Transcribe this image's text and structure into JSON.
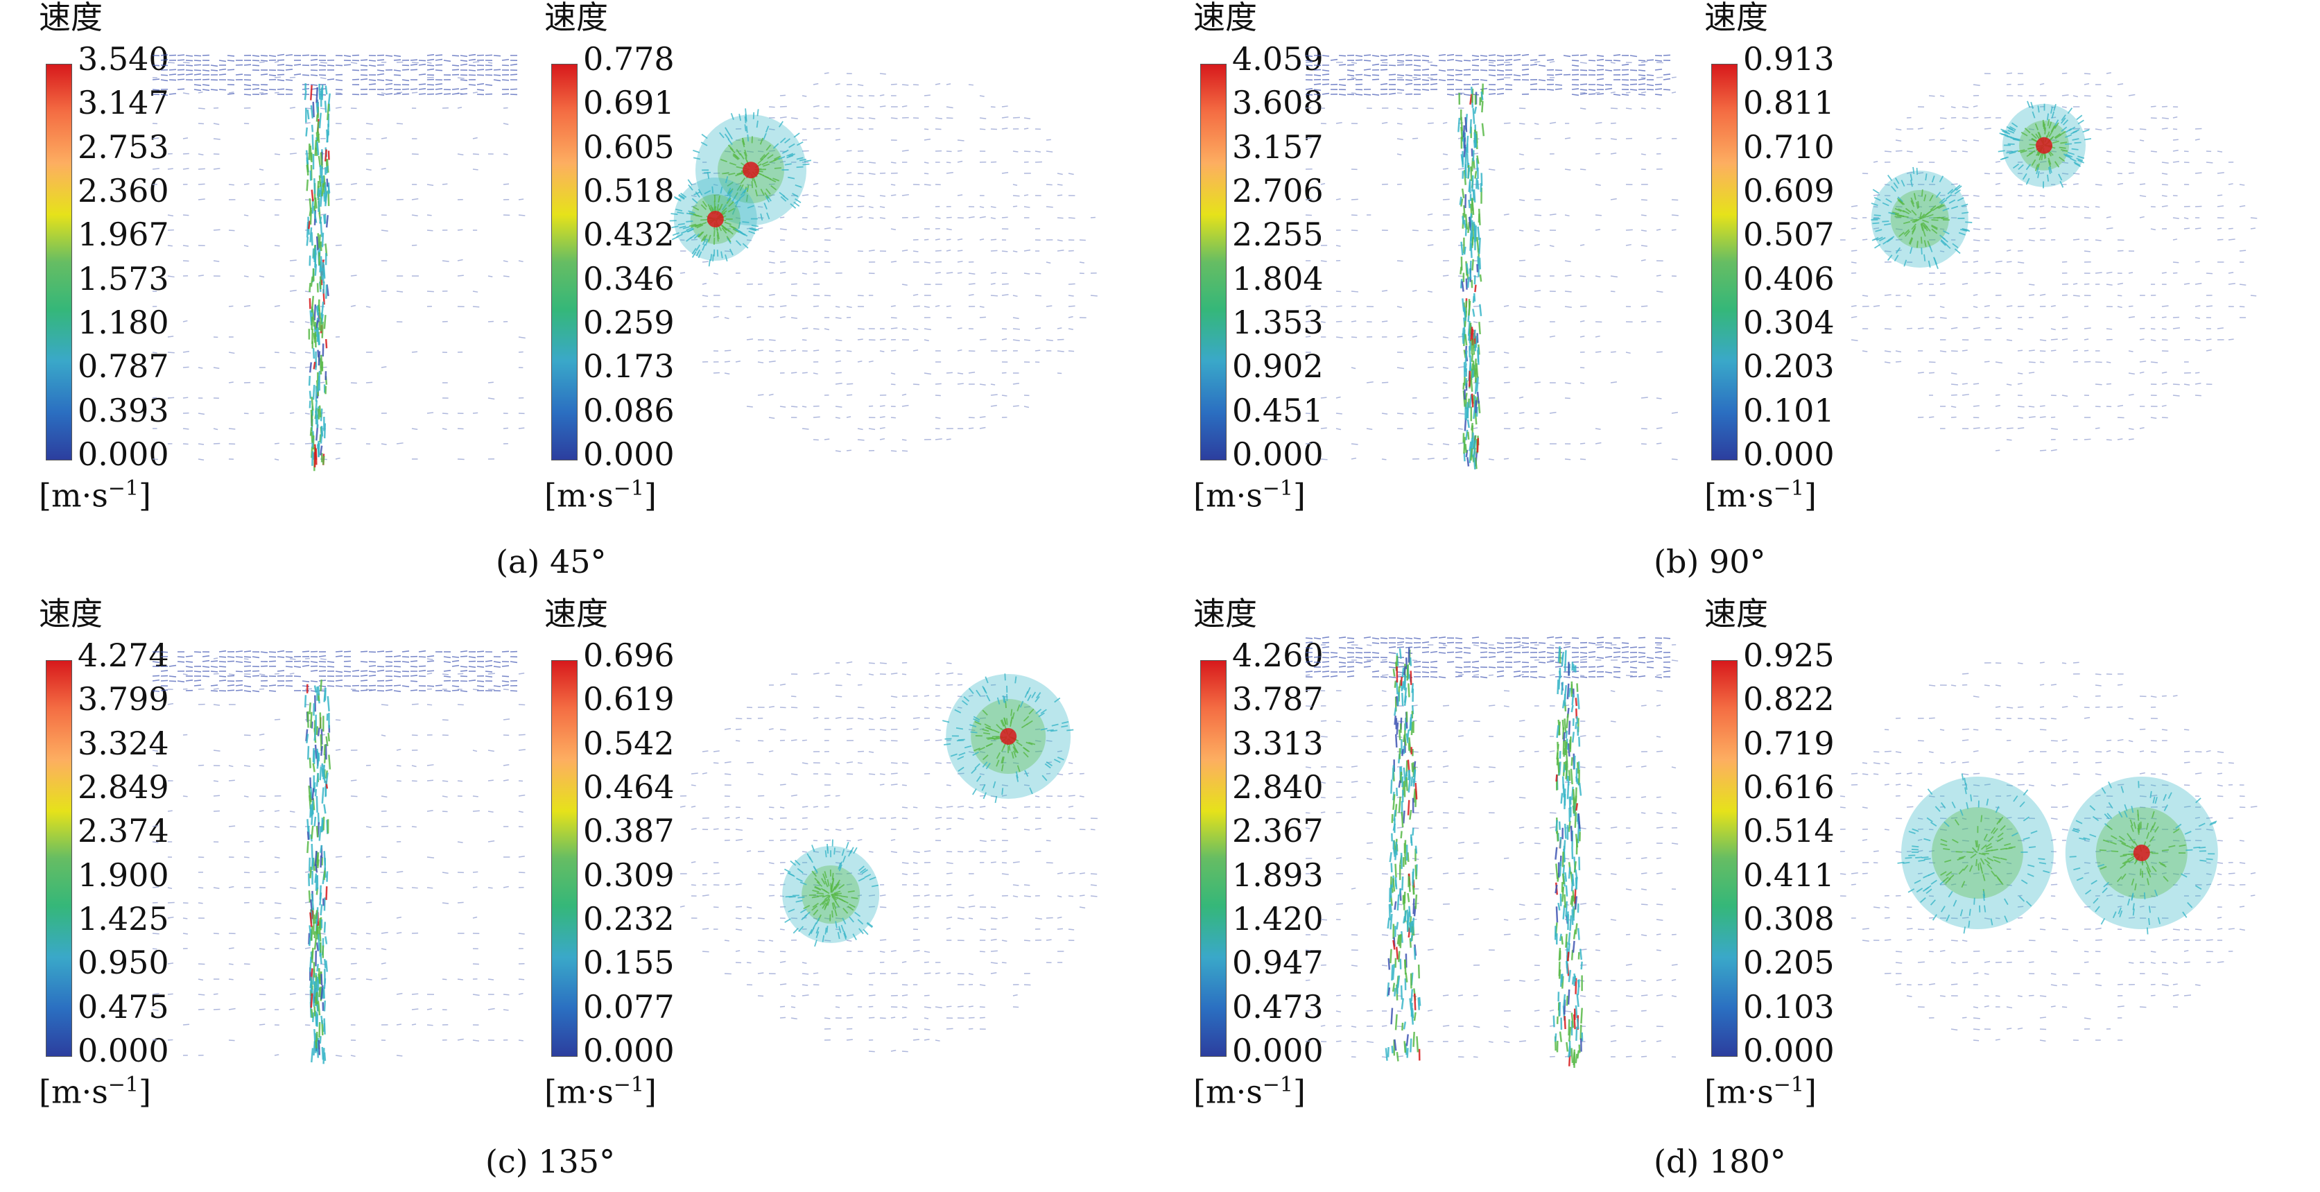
{
  "panels": [
    {
      "caption": "(a) 45°",
      "side": {
        "title": "速度",
        "unit": "[m·s",
        "unit_sup": "−1",
        "unit_close": "]",
        "ticks": [
          "3.540",
          "3.147",
          "2.753",
          "2.360",
          "1.967",
          "1.573",
          "1.180",
          "0.787",
          "0.393",
          "0.000"
        ]
      },
      "top": {
        "title": "速度",
        "unit": "[m·s",
        "unit_sup": "−1",
        "unit_close": "]",
        "ticks": [
          "0.778",
          "0.691",
          "0.605",
          "0.518",
          "0.432",
          "0.346",
          "0.259",
          "0.173",
          "0.086",
          "0.000"
        ]
      }
    },
    {
      "caption": "(b) 90°",
      "side": {
        "title": "速度",
        "unit": "[m·s",
        "unit_sup": "−1",
        "unit_close": "]",
        "ticks": [
          "4.059",
          "3.608",
          "3.157",
          "2.706",
          "2.255",
          "1.804",
          "1.353",
          "0.902",
          "0.451",
          "0.000"
        ]
      },
      "top": {
        "title": "速度",
        "unit": "[m·s",
        "unit_sup": "−1",
        "unit_close": "]",
        "ticks": [
          "0.913",
          "0.811",
          "0.710",
          "0.609",
          "0.507",
          "0.406",
          "0.304",
          "0.203",
          "0.101",
          "0.000"
        ]
      }
    },
    {
      "caption": "(c) 135°",
      "side": {
        "title": "速度",
        "unit": "[m·s",
        "unit_sup": "−1",
        "unit_close": "]",
        "ticks": [
          "4.274",
          "3.799",
          "3.324",
          "2.849",
          "2.374",
          "1.900",
          "1.425",
          "0.950",
          "0.475",
          "0.000"
        ]
      },
      "top": {
        "title": "速度",
        "unit": "[m·s",
        "unit_sup": "−1",
        "unit_close": "]",
        "ticks": [
          "0.696",
          "0.619",
          "0.542",
          "0.464",
          "0.387",
          "0.309",
          "0.232",
          "0.155",
          "0.077",
          "0.000"
        ]
      }
    },
    {
      "caption": "(d) 180°",
      "side": {
        "title": "速度",
        "unit": "[m·s",
        "unit_sup": "−1",
        "unit_close": "]",
        "ticks": [
          "4.260",
          "3.787",
          "3.313",
          "2.840",
          "2.367",
          "1.893",
          "1.420",
          "0.947",
          "0.473",
          "0.000"
        ]
      },
      "top": {
        "title": "速度",
        "unit": "[m·s",
        "unit_sup": "−1",
        "unit_close": "]",
        "ticks": [
          "0.925",
          "0.822",
          "0.719",
          "0.616",
          "0.514",
          "0.411",
          "0.308",
          "0.205",
          "0.103",
          "0.000"
        ]
      }
    }
  ],
  "colors": {
    "background": "#ffffff",
    "field_sparse": "#9aa6d4",
    "field_low": "#3f55b3",
    "field_mid": "#39b6c8",
    "field_high": "#58b947",
    "field_peak": "#d7191c"
  }
}
